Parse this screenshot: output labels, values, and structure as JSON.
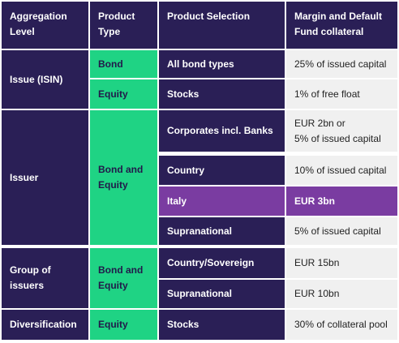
{
  "headers": {
    "aggregation_level": "Aggregation\nLevel",
    "product_type": "Product\nType",
    "product_selection": "Product Selection",
    "collateral": "Margin and Default\nFund collateral"
  },
  "groups": {
    "issue": {
      "label": "Issue (ISIN)"
    },
    "issuer": {
      "label": "Issuer",
      "product_type": "Bond and\nEquity"
    },
    "group_of_issuers": {
      "label": "Group of\nissuers",
      "product_type": "Bond and\nEquity"
    },
    "diversification": {
      "label": "Diversification"
    }
  },
  "rows": [
    {
      "product_type": "Bond",
      "selection": "All bond types",
      "limit": "25% of issued capital"
    },
    {
      "product_type": "Equity",
      "selection": "Stocks",
      "limit": "1% of free float"
    },
    {
      "selection": "Corporates incl. Banks",
      "limit": "EUR 2bn or\n5% of issued capital"
    },
    {
      "selection": "Country",
      "limit": "10% of issued capital"
    },
    {
      "selection": "Italy",
      "limit": "EUR 3bn"
    },
    {
      "selection": "Supranational",
      "limit": "5% of issued capital"
    },
    {
      "selection": "Country/Sovereign",
      "limit": "EUR 15bn"
    },
    {
      "selection": "Supranational",
      "limit": "EUR 10bn"
    },
    {
      "product_type": "Equity",
      "selection": "Stocks",
      "limit": "30% of collateral pool"
    }
  ],
  "colors": {
    "header_navy": "#2a1f56",
    "product_type_green": "#1fd384",
    "highlight_purple": "#7a3ca1",
    "value_cell_grey": "#f0f0f0"
  }
}
